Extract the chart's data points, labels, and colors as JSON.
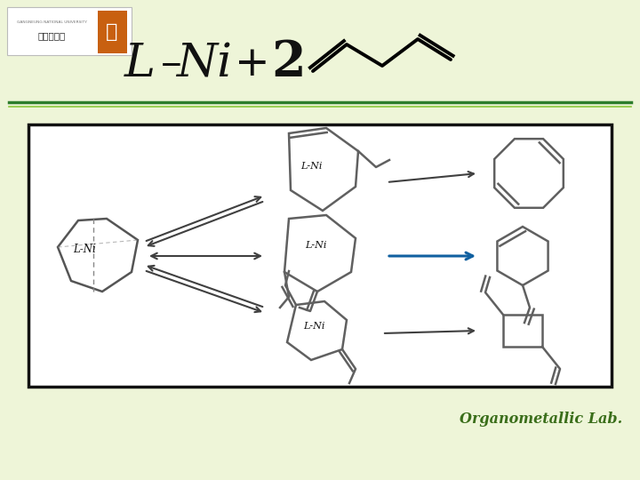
{
  "bg_color": "#eef5d8",
  "sep_color1": "#2d7d2d",
  "sep_color2": "#8bc83d",
  "box_edge": "#111111",
  "struct_color": "#606060",
  "arrow_dark": "#404040",
  "arrow_blue": "#1060a0",
  "footer_text": "Organometallic Lab.",
  "footer_color": "#3a6e1a",
  "lni_label": "L-Ni",
  "title_L": "L",
  "title_dash": "–",
  "title_Ni": "Ni",
  "title_plus": "+",
  "title_2": "2"
}
